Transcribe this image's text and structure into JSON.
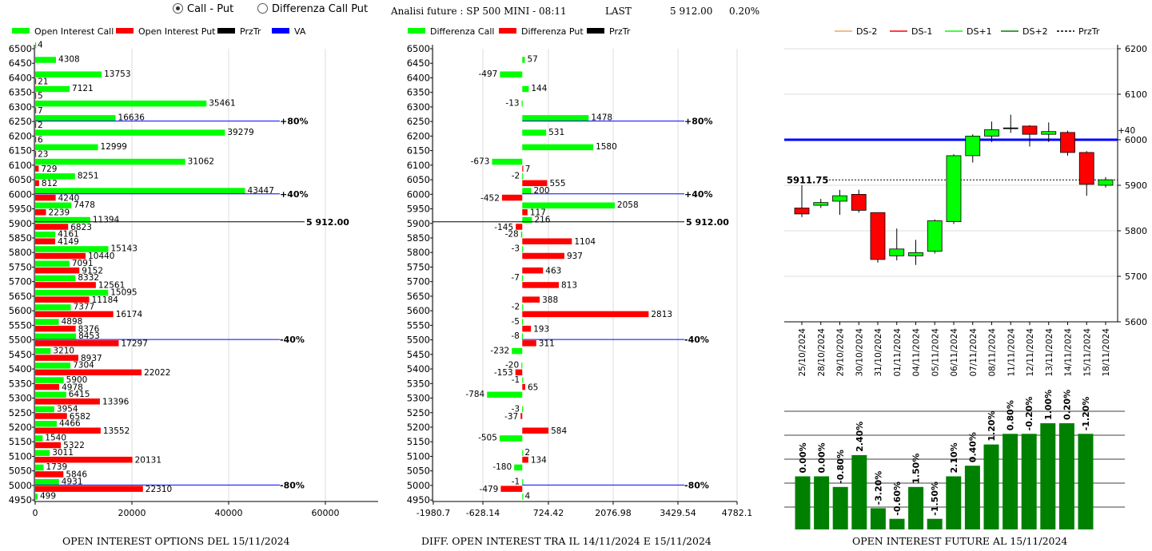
{
  "header": {
    "radio_call_put": "Call - Put",
    "radio_diff": "Differenza Call Put",
    "info_title": "Analisi future : SP 500 MINI - 08:11",
    "last_label": "LAST",
    "last_value": "5 912.00",
    "last_change": "0.20%"
  },
  "colors": {
    "green": "#00ff00",
    "red": "#ff0000",
    "black": "#000000",
    "blue": "#0000ff",
    "dark_green": "#008000",
    "orange": "#f4a460"
  },
  "chart_data": [
    {
      "type": "bar",
      "orientation": "horizontal",
      "caption": "OPEN INTEREST OPTIONS DEL 15/11/2024",
      "legend": [
        "Open Interest Call",
        "Open Interest Put",
        "PrzTr",
        "VA"
      ],
      "strikes": [
        "6500",
        "6450",
        "6400",
        "6350",
        "6300",
        "6250",
        "6200",
        "6150",
        "6100",
        "6050",
        "6000",
        "5950",
        "5900",
        "5850",
        "5800",
        "5750",
        "5700",
        "5650",
        "5600",
        "5550",
        "5500",
        "5450",
        "5400",
        "5350",
        "5300",
        "5250",
        "5200",
        "5150",
        "5100",
        "5050",
        "5000",
        "4950"
      ],
      "call": [
        4,
        4308,
        13753,
        7121,
        35461,
        16636,
        39279,
        12999,
        31062,
        8251,
        43447,
        7478,
        11394,
        4161,
        15143,
        7091,
        8332,
        15095,
        7377,
        4898,
        8453,
        3210,
        7304,
        5900,
        6415,
        3954,
        4466,
        1540,
        3011,
        1739,
        4931,
        499
      ],
      "put": [
        null,
        null,
        21,
        5,
        7,
        2,
        6,
        23,
        729,
        812,
        4240,
        2239,
        6823,
        4149,
        10440,
        9152,
        12561,
        11184,
        16174,
        8376,
        17297,
        8937,
        22022,
        4978,
        13396,
        6582,
        13552,
        5322,
        20131,
        5846,
        22310,
        null
      ],
      "xticks": [
        "0",
        "20000",
        "40000",
        "60000"
      ],
      "xlim": [
        0,
        71000
      ],
      "price_line": {
        "strike": "5900",
        "label": "5 912.00"
      },
      "va_lines": [
        {
          "strike": "6250",
          "label": "+80%"
        },
        {
          "strike": "6000",
          "label": "+40%"
        },
        {
          "strike": "5500",
          "label": "-40%"
        },
        {
          "strike": "5000",
          "label": "-80%"
        }
      ]
    },
    {
      "type": "bar",
      "orientation": "horizontal",
      "caption": "DIFF. OPEN INTEREST TRA IL 14/11/2024 E 15/11/2024",
      "legend": [
        "Differenza Call",
        "Differenza Put",
        "PrzTr"
      ],
      "strikes": [
        "6500",
        "6450",
        "6400",
        "6350",
        "6300",
        "6250",
        "6200",
        "6150",
        "6100",
        "6050",
        "6000",
        "5950",
        "5900",
        "5850",
        "5800",
        "5750",
        "5700",
        "5650",
        "5600",
        "5550",
        "5500",
        "5450",
        "5400",
        "5350",
        "5300",
        "5250",
        "5200",
        "5150",
        "5100",
        "5050",
        "5000",
        "4950"
      ],
      "call": [
        null,
        57,
        -497,
        144,
        -13,
        1478,
        531,
        1580,
        -673,
        -2,
        200,
        2058,
        216,
        -28,
        -3,
        null,
        -7,
        null,
        -2,
        -5,
        -8,
        -232,
        -20,
        -1,
        -784,
        -3,
        null,
        -505,
        2,
        -180,
        -1,
        4
      ],
      "put": [
        null,
        null,
        null,
        null,
        null,
        null,
        null,
        null,
        7,
        555,
        -452,
        117,
        -145,
        1104,
        937,
        463,
        813,
        388,
        2813,
        193,
        311,
        null,
        -153,
        65,
        null,
        -37,
        584,
        null,
        134,
        null,
        -479,
        null
      ],
      "xticks": [
        "-1980.7",
        "-628.14",
        "724.42",
        "2076.98",
        "3429.54",
        "4782.1"
      ],
      "xlim": [
        -1980.7,
        4782.1
      ],
      "price_line": {
        "strike": "5900",
        "label": "5 912.00"
      },
      "va_lines": [
        {
          "strike": "6250",
          "label": "+80%"
        },
        {
          "strike": "6000",
          "label": "+40%"
        },
        {
          "strike": "5500",
          "label": "-40%"
        },
        {
          "strike": "5000",
          "label": "-80%"
        }
      ]
    },
    {
      "type": "candlestick",
      "legend": [
        "DS-2",
        "DS-1",
        "DS+1",
        "DS+2",
        "PrzTr"
      ],
      "dates": [
        "25/10/2024",
        "28/10/2024",
        "29/10/2024",
        "30/10/2024",
        "31/10/2024",
        "01/11/2024",
        "04/11/2024",
        "05/11/2024",
        "06/11/2024",
        "07/11/2024",
        "08/11/2024",
        "11/11/2024",
        "12/11/2024",
        "13/11/2024",
        "14/11/2024",
        "15/11/2024",
        "18/11/2024"
      ],
      "candles": [
        {
          "o": 5850,
          "c": 5837,
          "h": 5900,
          "l": 5830
        },
        {
          "o": 5856,
          "c": 5862,
          "h": 5870,
          "l": 5850
        },
        {
          "o": 5865,
          "c": 5877,
          "h": 5890,
          "l": 5835
        },
        {
          "o": 5880,
          "c": 5845,
          "h": 5890,
          "l": 5840
        },
        {
          "o": 5840,
          "c": 5737,
          "h": 5840,
          "l": 5730
        },
        {
          "o": 5745,
          "c": 5760,
          "h": 5805,
          "l": 5735
        },
        {
          "o": 5745,
          "c": 5752,
          "h": 5780,
          "l": 5725
        },
        {
          "o": 5755,
          "c": 5822,
          "h": 5825,
          "l": 5750
        },
        {
          "o": 5820,
          "c": 5965,
          "h": 5968,
          "l": 5815
        },
        {
          "o": 5965,
          "c": 6008,
          "h": 6012,
          "l": 5950
        },
        {
          "o": 6008,
          "c": 6022,
          "h": 6040,
          "l": 5995
        },
        {
          "o": 6026,
          "c": 6026,
          "h": 6055,
          "l": 6015
        },
        {
          "o": 6030,
          "c": 6012,
          "h": 6032,
          "l": 5985
        },
        {
          "o": 6012,
          "c": 6018,
          "h": 6038,
          "l": 5995
        },
        {
          "o": 6016,
          "c": 5972,
          "h": 6020,
          "l": 5965
        },
        {
          "o": 5972,
          "c": 5902,
          "h": 5975,
          "l": 5877
        },
        {
          "o": 5900,
          "c": 5912,
          "h": 5918,
          "l": 5895
        }
      ],
      "ylim": [
        5600,
        6200
      ],
      "yticks": [
        "5600",
        "5700",
        "5800",
        "5900",
        "6000",
        "6100",
        "6200"
      ],
      "hline": {
        "value": 6000,
        "label": "+40"
      },
      "price": {
        "value": 5911.75,
        "label": "5911.75"
      }
    },
    {
      "type": "bar",
      "caption": "OPEN INTEREST FUTURE AL 15/11/2024",
      "values": [
        5,
        5,
        4,
        7,
        2,
        1,
        4,
        1,
        5,
        6,
        8,
        9,
        9,
        10,
        10,
        9
      ],
      "labels": [
        "0.00%",
        "0.00%",
        "-0.80%",
        "2.40%",
        "-3.20%",
        "-0.60%",
        "1.50%",
        "-1.50%",
        "2.10%",
        "0.40%",
        "1.20%",
        "0.80%",
        "-0.20%",
        "1.00%",
        "0.20%",
        "-1.20%"
      ]
    }
  ]
}
